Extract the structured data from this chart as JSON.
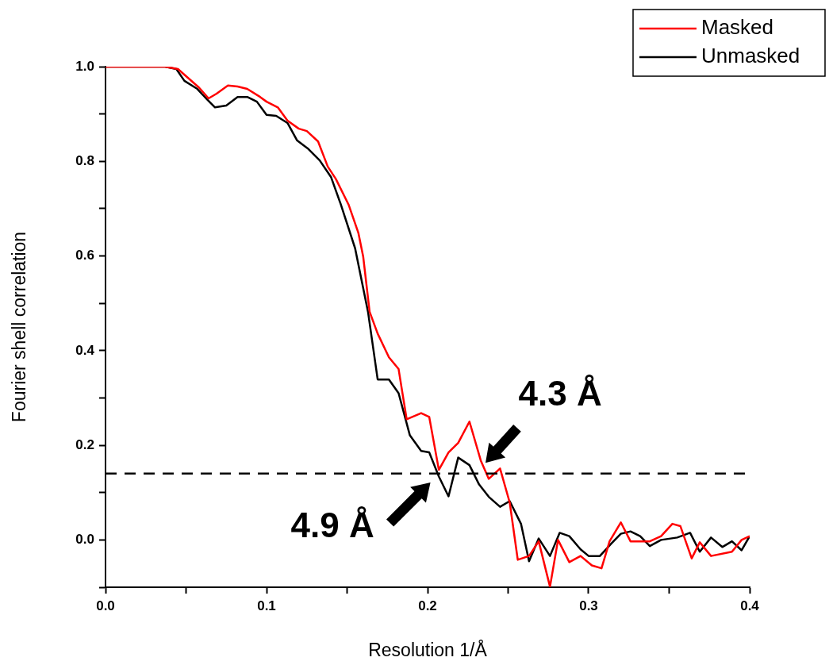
{
  "chart_data": {
    "type": "line",
    "xlabel": "Resolution 1/Å",
    "ylabel": "Fourier shell correlation",
    "xlim": [
      0,
      0.4
    ],
    "ylim": [
      -0.1,
      1.0
    ],
    "xticks": [
      {
        "value": 0,
        "label": "0.0"
      },
      {
        "value": 0.05,
        "label": null
      },
      0.1,
      {
        "value": 0.15,
        "label": null
      },
      0.2,
      {
        "value": 0.25,
        "label": null
      },
      0.3,
      {
        "value": 0.35,
        "label": null
      },
      0.4
    ],
    "yticks": [
      {
        "value": -0.1,
        "label": null
      },
      {
        "value": 0,
        "label": "0.0"
      },
      {
        "value": 0.1,
        "label": null
      },
      0.2,
      {
        "value": 0.3,
        "label": null
      },
      0.4,
      {
        "value": 0.5,
        "label": null
      },
      0.6,
      {
        "value": 0.7,
        "label": null
      },
      0.8,
      {
        "value": 0.9,
        "label": null
      },
      {
        "value": 1.0,
        "label": "1.0"
      }
    ],
    "grid": false,
    "legend": "top right",
    "marker": "none",
    "line_style": "solid",
    "series": [
      {
        "name": "Masked",
        "color": "#ff0000",
        "x": [
          0,
          0.037,
          0.045,
          0.058,
          0.064,
          0.069,
          0.076,
          0.082,
          0.088,
          0.096,
          0.1,
          0.107,
          0.113,
          0.12,
          0.125,
          0.132,
          0.138,
          0.143,
          0.151,
          0.157,
          0.16,
          0.164,
          0.169,
          0.176,
          0.182,
          0.187,
          0.196,
          0.201,
          0.207,
          0.213,
          0.219,
          0.226,
          0.233,
          0.238,
          0.245,
          0.251,
          0.256,
          0.263,
          0.269,
          0.276,
          0.281,
          0.288,
          0.295,
          0.302,
          0.308,
          0.313,
          0.32,
          0.326,
          0.338,
          0.345,
          0.352,
          0.357,
          0.364,
          0.369,
          0.376,
          0.389,
          0.395,
          0.4
        ],
        "values": [
          1.0,
          1.0,
          0.995,
          0.956,
          0.933,
          0.943,
          0.96,
          0.958,
          0.953,
          0.936,
          0.926,
          0.914,
          0.886,
          0.869,
          0.864,
          0.842,
          0.789,
          0.763,
          0.708,
          0.649,
          0.599,
          0.482,
          0.436,
          0.386,
          0.361,
          0.255,
          0.268,
          0.26,
          0.148,
          0.185,
          0.205,
          0.25,
          0.168,
          0.129,
          0.151,
          0.079,
          -0.042,
          -0.034,
          -0.003,
          -0.099,
          0.0,
          -0.047,
          -0.034,
          -0.054,
          -0.06,
          -0.003,
          0.037,
          -0.003,
          -0.003,
          0.008,
          0.034,
          0.029,
          -0.039,
          -0.005,
          -0.034,
          -0.025,
          0.0,
          0.008
        ]
      },
      {
        "name": "Unmasked",
        "color": "#000000",
        "x": [
          0,
          0.037,
          0.044,
          0.049,
          0.057,
          0.063,
          0.068,
          0.075,
          0.082,
          0.088,
          0.094,
          0.1,
          0.106,
          0.113,
          0.119,
          0.126,
          0.133,
          0.14,
          0.146,
          0.155,
          0.163,
          0.169,
          0.176,
          0.182,
          0.189,
          0.196,
          0.201,
          0.207,
          0.213,
          0.219,
          0.226,
          0.232,
          0.238,
          0.245,
          0.251,
          0.258,
          0.263,
          0.269,
          0.276,
          0.282,
          0.288,
          0.295,
          0.3,
          0.307,
          0.314,
          0.32,
          0.326,
          0.332,
          0.338,
          0.345,
          0.355,
          0.363,
          0.369,
          0.376,
          0.383,
          0.389,
          0.395,
          0.4
        ],
        "values": [
          1.0,
          1.0,
          0.995,
          0.97,
          0.953,
          0.931,
          0.914,
          0.918,
          0.936,
          0.936,
          0.926,
          0.898,
          0.896,
          0.881,
          0.844,
          0.826,
          0.802,
          0.767,
          0.71,
          0.616,
          0.482,
          0.339,
          0.339,
          0.31,
          0.221,
          0.188,
          0.185,
          0.134,
          0.092,
          0.174,
          0.158,
          0.117,
          0.091,
          0.07,
          0.082,
          0.034,
          -0.045,
          0.003,
          -0.034,
          0.015,
          0.008,
          -0.02,
          -0.034,
          -0.034,
          -0.008,
          0.013,
          0.018,
          0.008,
          -0.013,
          0.0,
          0.005,
          0.015,
          -0.025,
          0.005,
          -0.015,
          -0.003,
          -0.022,
          0.008
        ]
      }
    ],
    "ref_lines": [
      {
        "axis": "y",
        "value": 0.14,
        "color": "#000000",
        "line_style": "dashed"
      }
    ],
    "annotations": [
      {
        "text": "4.3 Å",
        "x": 0.237,
        "y": 0.14
      },
      {
        "text": "4.9 Å",
        "x": 0.205,
        "y": 0.14
      }
    ]
  }
}
